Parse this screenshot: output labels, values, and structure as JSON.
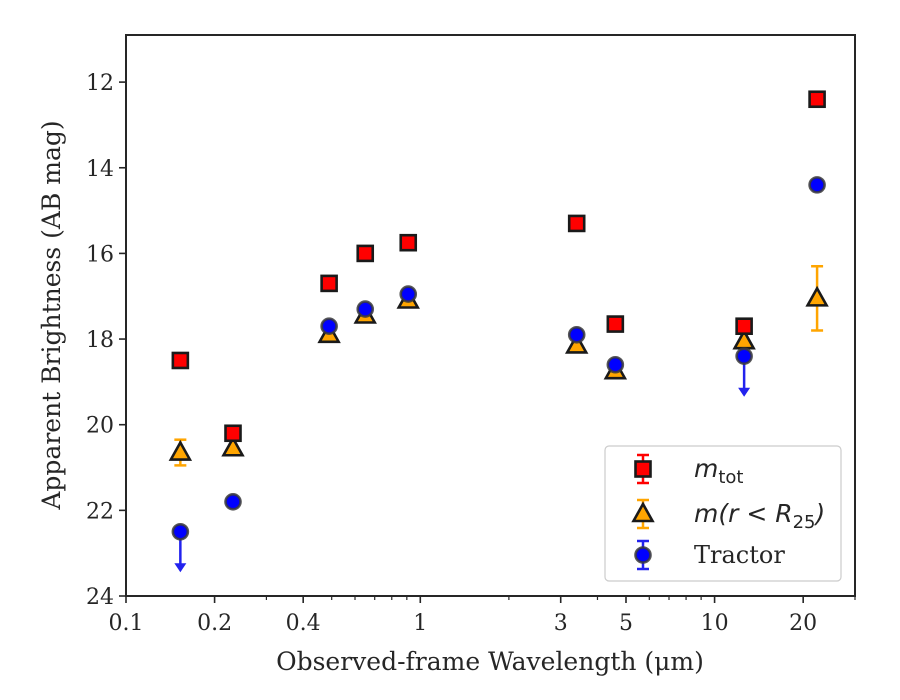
{
  "chart_data": {
    "type": "scatter",
    "title": "",
    "xlabel": "Observed-frame Wavelength (μm)",
    "ylabel": "Apparent Brightness (AB mag)",
    "xscale": "log",
    "xlim": [
      0.1,
      30
    ],
    "ylim": [
      24,
      10.9
    ],
    "y_inverted": true,
    "x_ticks": [
      0.1,
      0.2,
      0.4,
      1,
      3,
      5,
      10,
      20
    ],
    "x_tick_labels": [
      "0.1",
      "0.2",
      "0.4",
      "1",
      "3",
      "5",
      "10",
      "20"
    ],
    "y_ticks": [
      12,
      14,
      16,
      18,
      20,
      22,
      24
    ],
    "y_tick_labels": [
      "12",
      "14",
      "16",
      "18",
      "20",
      "22",
      "24"
    ],
    "grid": false,
    "legend_position": "lower-right",
    "legend": [
      {
        "label": "m_tot",
        "label_main": "m",
        "label_sub": "tot",
        "marker": "square",
        "color": "#ff0000"
      },
      {
        "label": "m(r < R25)",
        "label_main": "m(r < R",
        "label_sub": "25",
        "label_tail": ")",
        "marker": "triangle",
        "color": "#ffa500"
      },
      {
        "label": "Tractor",
        "marker": "circle",
        "color": "#0000ff"
      }
    ],
    "series": [
      {
        "name": "m_tot",
        "marker": "square",
        "face_color": "#ff0000",
        "edge_color": "#1a1a1a",
        "errorbar_color": "#ff0000",
        "points": [
          {
            "x": 0.153,
            "y": 18.5
          },
          {
            "x": 0.231,
            "y": 20.2
          },
          {
            "x": 0.49,
            "y": 16.7
          },
          {
            "x": 0.65,
            "y": 16.0
          },
          {
            "x": 0.91,
            "y": 15.75
          },
          {
            "x": 3.4,
            "y": 15.3
          },
          {
            "x": 4.6,
            "y": 17.65
          },
          {
            "x": 12.6,
            "y": 17.7
          },
          {
            "x": 22.3,
            "y": 12.4
          }
        ]
      },
      {
        "name": "m(r < R25)",
        "marker": "triangle",
        "face_color": "#ffa500",
        "edge_color": "#1a1a1a",
        "errorbar_color": "#ffa500",
        "points": [
          {
            "x": 0.153,
            "y": 20.65,
            "yerr": 0.3
          },
          {
            "x": 0.231,
            "y": 20.55
          },
          {
            "x": 0.49,
            "y": 17.9
          },
          {
            "x": 0.65,
            "y": 17.45
          },
          {
            "x": 0.91,
            "y": 17.1
          },
          {
            "x": 3.4,
            "y": 18.15
          },
          {
            "x": 4.6,
            "y": 18.75
          },
          {
            "x": 12.6,
            "y": 18.05
          },
          {
            "x": 22.3,
            "y": 17.05,
            "yerr": 0.75
          }
        ]
      },
      {
        "name": "Tractor",
        "marker": "circle",
        "face_color": "#0000ff",
        "edge_color": "#3a3a3a",
        "errorbar_color": "#2222ee",
        "points": [
          {
            "x": 0.153,
            "y": 22.5,
            "upper_limit": true
          },
          {
            "x": 0.231,
            "y": 21.8
          },
          {
            "x": 0.49,
            "y": 17.7
          },
          {
            "x": 0.65,
            "y": 17.3
          },
          {
            "x": 0.91,
            "y": 16.95
          },
          {
            "x": 3.4,
            "y": 17.9
          },
          {
            "x": 4.6,
            "y": 18.6
          },
          {
            "x": 12.6,
            "y": 18.4,
            "upper_limit": true
          },
          {
            "x": 22.3,
            "y": 14.4
          }
        ]
      }
    ]
  }
}
